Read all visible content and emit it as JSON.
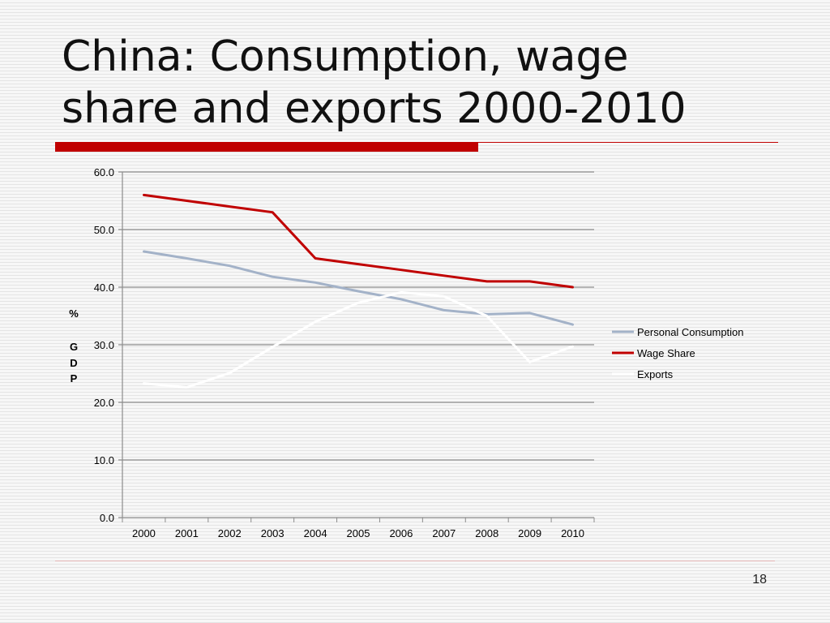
{
  "slide": {
    "title_line1": "China: Consumption, wage",
    "title_line2": "share and exports 2000-2010",
    "page_number": "18"
  },
  "colors": {
    "title_rule": "#c00000",
    "personal_consumption": "#a3b2c8",
    "wage_share": "#c00000",
    "exports": "#ffffff"
  },
  "chart_data": {
    "type": "line",
    "title": "",
    "xlabel": "",
    "ylabel": "% GDP",
    "ylabel_parts": [
      "%",
      "G",
      "D",
      "P"
    ],
    "x": [
      "2000",
      "2001",
      "2002",
      "2003",
      "2004",
      "2005",
      "2006",
      "2007",
      "2008",
      "2009",
      "2010"
    ],
    "ylim": [
      0,
      60
    ],
    "yticks": [
      "0.0",
      "10.0",
      "20.0",
      "30.0",
      "40.0",
      "50.0",
      "60.0"
    ],
    "grid": true,
    "legend_position": "right",
    "series": [
      {
        "name": "Personal Consumption",
        "color": "#a3b2c8",
        "values": [
          46.2,
          45.0,
          43.7,
          41.8,
          40.8,
          39.3,
          37.9,
          36.0,
          35.3,
          35.5,
          33.5
        ]
      },
      {
        "name": "Wage Share",
        "color": "#c00000",
        "values": [
          56.0,
          55.0,
          54.0,
          53.0,
          45.0,
          44.0,
          43.0,
          42.0,
          41.0,
          41.0,
          40.0
        ]
      },
      {
        "name": "Exports",
        "color": "#ffffff",
        "values": [
          23.3,
          22.6,
          25.1,
          29.6,
          34.0,
          37.3,
          39.1,
          38.4,
          35.0,
          27.0,
          29.7
        ]
      }
    ]
  }
}
